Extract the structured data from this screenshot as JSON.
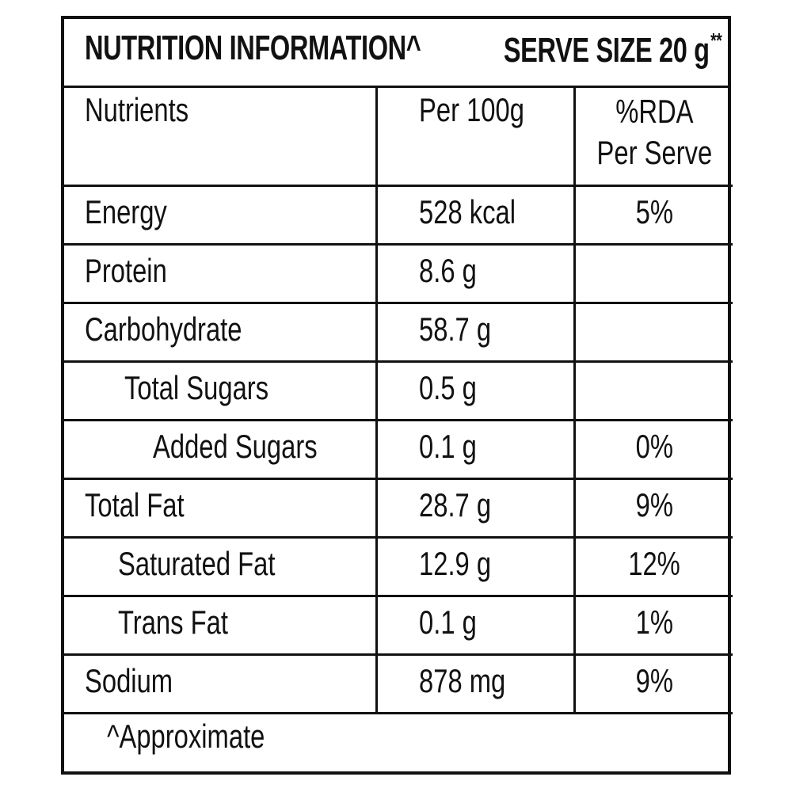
{
  "title": "NUTRITION INFORMATION^",
  "serve_size": "SERVE SIZE 20 g",
  "serve_size_mark": "**",
  "columns": {
    "nutrients": "Nutrients",
    "per100": "Per 100g",
    "rda_line1": "%RDA",
    "rda_line2": "Per Serve"
  },
  "rows": [
    {
      "name": "Energy",
      "per100": "528 kcal",
      "rda": "5%"
    },
    {
      "name": "Protein",
      "per100": "8.6 g",
      "rda": ""
    },
    {
      "name": "Carbohydrate",
      "per100": "58.7 g",
      "rda": ""
    },
    {
      "name": "Total Sugars",
      "per100": "0.5 g",
      "rda": ""
    },
    {
      "name": "Added Sugars",
      "per100": "0.1 g",
      "rda": "0%"
    },
    {
      "name": "Total Fat",
      "per100": "28.7 g",
      "rda": "9%"
    },
    {
      "name": "Saturated Fat",
      "per100": "12.9 g",
      "rda": "12%"
    },
    {
      "name": "Trans Fat",
      "per100": "0.1 g",
      "rda": "1%"
    },
    {
      "name": "Sodium",
      "per100": "878 mg",
      "rda": "9%"
    }
  ],
  "footnote": "^Approximate"
}
